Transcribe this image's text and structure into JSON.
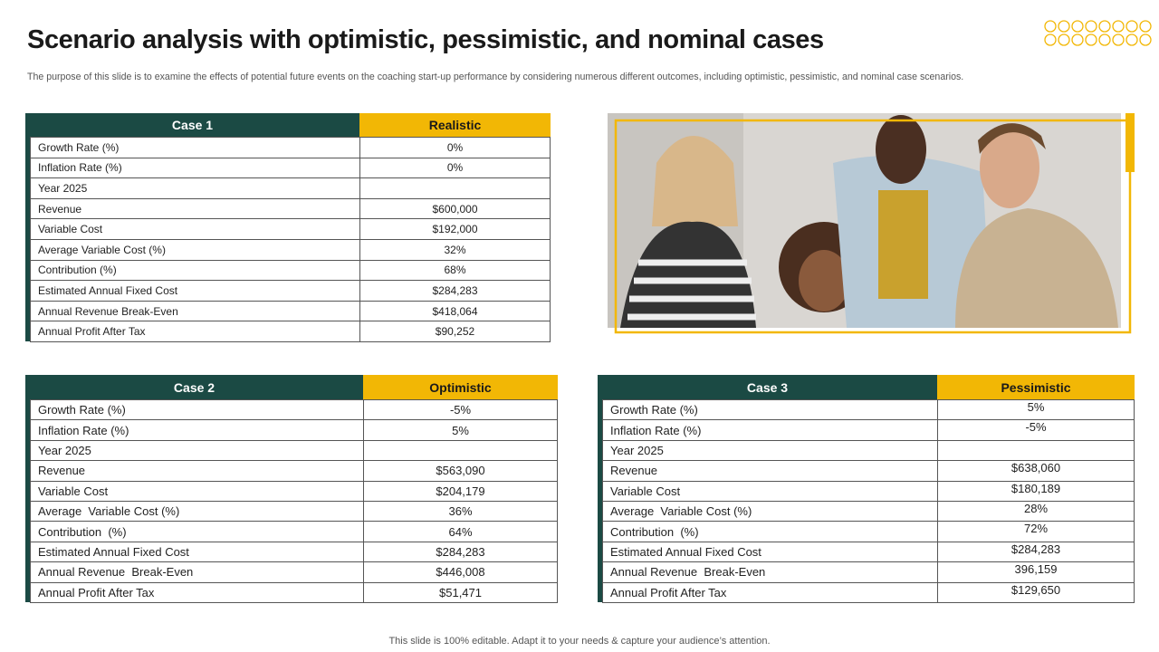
{
  "header": {
    "title": "Scenario analysis with optimistic, pessimistic, and nominal cases",
    "subtitle": "The purpose of this slide is to examine the effects of potential future events on the coaching start-up performance by considering numerous different outcomes, including optimistic, pessimistic, and nominal case scenarios."
  },
  "tables": [
    {
      "header": [
        "Case 1",
        "Realistic"
      ],
      "rows": [
        [
          "Growth Rate (%)",
          "0%"
        ],
        [
          "Inflation Rate (%)",
          "0%"
        ],
        [
          "Year 2025"
        ],
        [
          "Revenue",
          "$600,000"
        ],
        [
          "Variable Cost",
          "$192,000"
        ],
        [
          "Average Variable Cost (%)",
          "32%"
        ],
        [
          "Contribution (%)",
          "68%"
        ],
        [
          "Estimated Annual Fixed Cost",
          "$284,283"
        ],
        [
          "Annual Revenue Break-Even",
          "$418,064"
        ],
        [
          "Annual Profit After Tax",
          "$90,252"
        ]
      ]
    },
    {
      "header": [
        "Case 2",
        "Optimistic"
      ],
      "rows": [
        [
          "Growth Rate (%)",
          "-5%"
        ],
        [
          "Inflation Rate (%)",
          "5%"
        ],
        [
          "Year 2025"
        ],
        [
          "Revenue",
          "$563,090"
        ],
        [
          "Variable Cost",
          "$204,179"
        ],
        [
          "Average  Variable Cost (%)",
          "36%"
        ],
        [
          "Contribution  (%)",
          "64%"
        ],
        [
          "Estimated Annual Fixed Cost",
          "$284,283"
        ],
        [
          "Annual Revenue  Break-Even",
          "$446,008"
        ],
        [
          "Annual Profit After Tax",
          "$51,471"
        ]
      ]
    },
    {
      "header": [
        "Case 3",
        "Pessimistic"
      ],
      "rows": [
        [
          "Growth Rate (%)",
          "5%"
        ],
        [
          "Inflation Rate (%)",
          "-5%"
        ],
        [
          "Year 2025"
        ],
        [
          "Revenue",
          "$638,060"
        ],
        [
          "Variable Cost",
          "$180,189"
        ],
        [
          "Average  Variable Cost (%)",
          "28%"
        ],
        [
          "Contribution  (%)",
          "72%"
        ],
        [
          "Estimated Annual Fixed Cost",
          "$284,283"
        ],
        [
          "Annual Revenue  Break-Even",
          "396,159"
        ],
        [
          "Annual Profit After Tax",
          "$129,650"
        ]
      ]
    }
  ],
  "footer": "This slide is 100% editable. Adapt it to your needs & capture your audience’s attention."
}
